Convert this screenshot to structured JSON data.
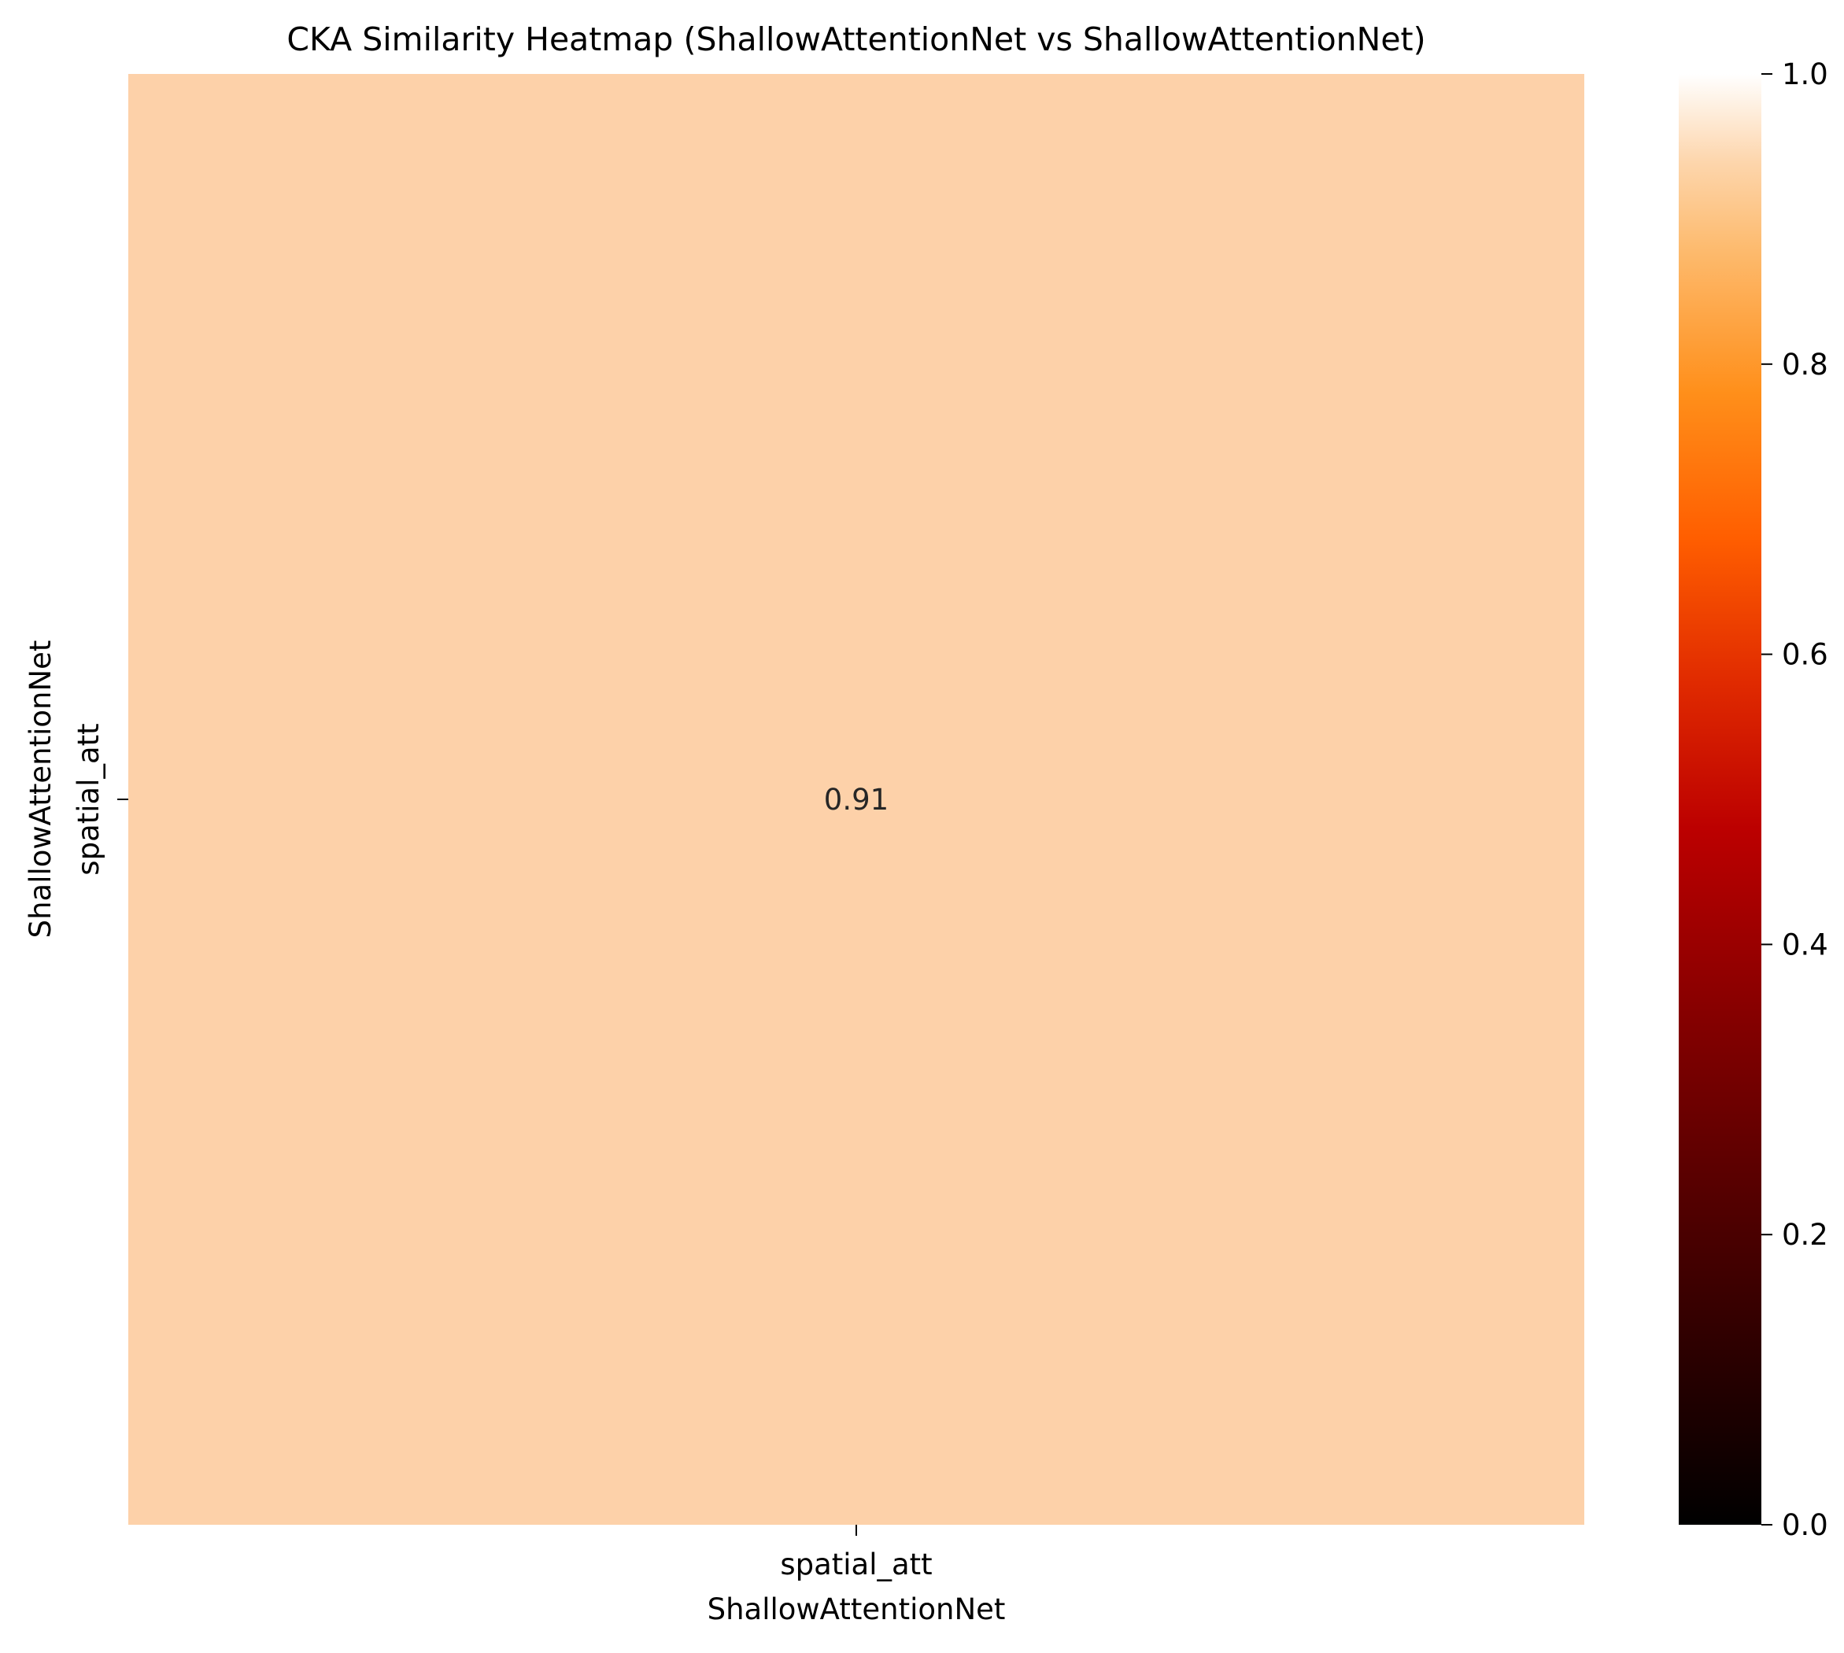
{
  "chart_data": {
    "type": "heatmap",
    "title": "CKA Similarity Heatmap (ShallowAttentionNet vs ShallowAttentionNet)",
    "xlabel": "ShallowAttentionNet",
    "ylabel": "ShallowAttentionNet",
    "x_categories": [
      "spatial_att"
    ],
    "y_categories": [
      "spatial_att"
    ],
    "values": [
      [
        0.91
      ]
    ],
    "annotations": [
      [
        "0.91"
      ]
    ],
    "colormap": "gist_heat",
    "color_range": [
      0.0,
      1.0
    ],
    "colorbar_ticks": [
      "0.0",
      "0.2",
      "0.4",
      "0.6",
      "0.8",
      "1.0"
    ],
    "colorbar_tick_values": [
      0.0,
      0.2,
      0.4,
      0.6,
      0.8,
      1.0
    ],
    "cell_color": "#fdd1a9",
    "annotation_color": "#262626",
    "grid": false
  }
}
